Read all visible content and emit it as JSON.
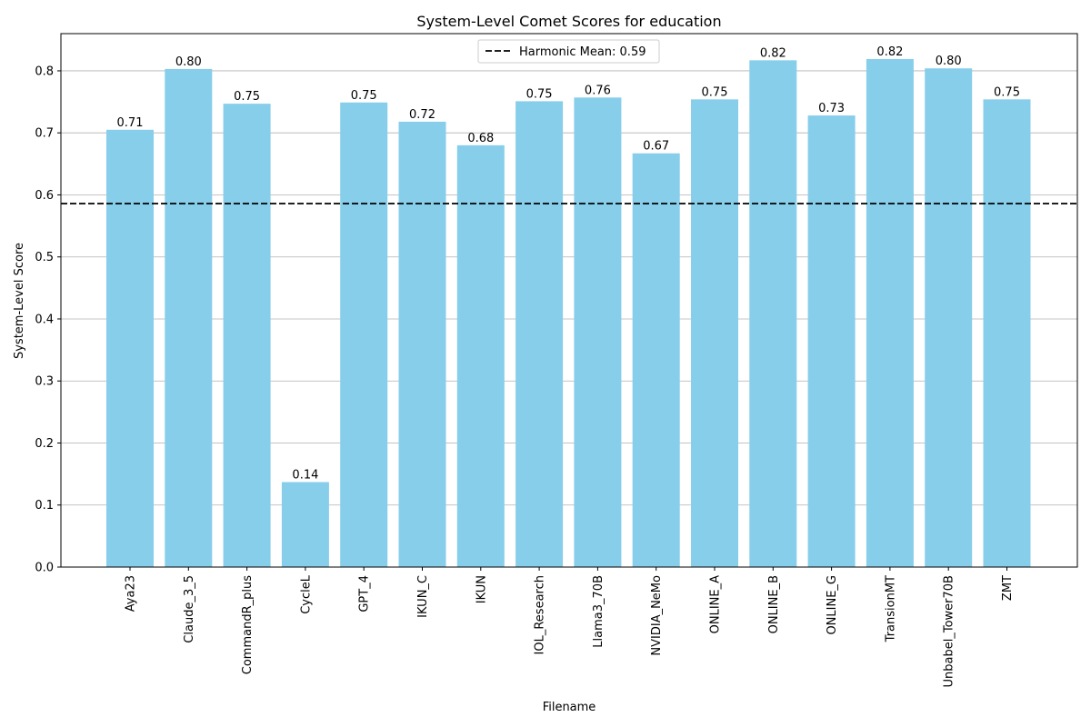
{
  "chart_data": {
    "type": "bar",
    "title": "System-Level Comet Scores for education",
    "xlabel": "Filename",
    "ylabel": "System-Level Score",
    "categories": [
      "Aya23",
      "Claude_3_5",
      "CommandR_plus",
      "CycleL",
      "GPT_4",
      "IKUN_C",
      "IKUN",
      "IOL_Research",
      "Llama3_70B",
      "NVIDIA_NeMo",
      "ONLINE_A",
      "ONLINE_B",
      "ONLINE_G",
      "TransionMT",
      "Unbabel_Tower70B",
      "ZMT"
    ],
    "values": [
      0.705,
      0.803,
      0.747,
      0.137,
      0.749,
      0.718,
      0.68,
      0.751,
      0.757,
      0.667,
      0.754,
      0.817,
      0.728,
      0.819,
      0.804,
      0.754
    ],
    "value_labels": [
      "0.71",
      "0.80",
      "0.75",
      "0.14",
      "0.75",
      "0.72",
      "0.68",
      "0.75",
      "0.76",
      "0.67",
      "0.75",
      "0.82",
      "0.73",
      "0.82",
      "0.80",
      "0.75"
    ],
    "ylim": [
      0,
      0.86
    ],
    "yticks": [
      "0.0",
      "0.1",
      "0.2",
      "0.3",
      "0.4",
      "0.5",
      "0.6",
      "0.7",
      "0.8"
    ],
    "ytick_values": [
      0,
      0.1,
      0.2,
      0.3,
      0.4,
      0.5,
      0.6,
      0.7,
      0.8
    ],
    "grid": "y",
    "bar_color": "#87ceeb",
    "reference_line": {
      "value": 0.586,
      "style": "dashed",
      "color": "#000000",
      "label": "Harmonic Mean: 0.59"
    },
    "legend": {
      "placement": "upper-center",
      "entries": [
        "Harmonic Mean: 0.59"
      ]
    }
  }
}
